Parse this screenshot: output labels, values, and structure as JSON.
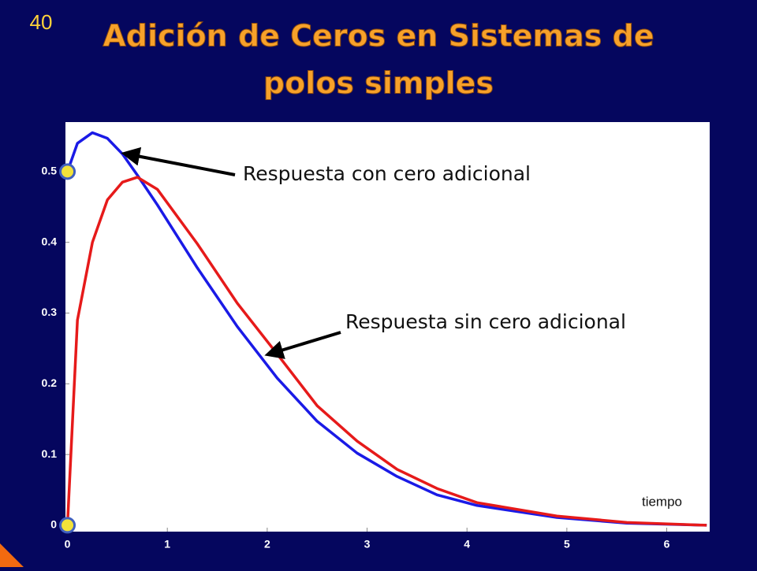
{
  "slide_number": "40",
  "chart_data": {
    "type": "line",
    "title": [
      "Adición de Ceros en Sistemas de",
      "polos simples"
    ],
    "x": [
      0,
      0.1,
      0.25,
      0.4,
      0.55,
      0.7,
      0.9,
      1.3,
      1.7,
      2.1,
      2.5,
      2.9,
      3.3,
      3.7,
      4.1,
      4.9,
      5.6,
      6.4
    ],
    "series": [
      {
        "name": "Respuesta con cero adicional",
        "color": "#1a1ae6",
        "values": [
          0.5,
          0.54,
          0.555,
          0.547,
          0.525,
          0.495,
          0.453,
          0.364,
          0.281,
          0.208,
          0.147,
          0.102,
          0.069,
          0.043,
          0.028,
          0.011,
          0.003,
          0
        ]
      },
      {
        "name": "Respuesta sin cero adicional",
        "color": "#e61a1a",
        "values": [
          0,
          0.29,
          0.4,
          0.46,
          0.485,
          0.492,
          0.475,
          0.398,
          0.314,
          0.242,
          0.169,
          0.119,
          0.079,
          0.052,
          0.032,
          0.013,
          0.004,
          0
        ]
      }
    ],
    "x_label": "tiempo",
    "xlim": [
      -0.02,
      6.43
    ],
    "ylim": [
      -0.009,
      0.57
    ],
    "xticks": [
      0,
      1,
      2,
      3,
      4,
      5,
      6
    ],
    "yticks": [
      0,
      0.1,
      0.2,
      0.3,
      0.4,
      0.5
    ]
  }
}
